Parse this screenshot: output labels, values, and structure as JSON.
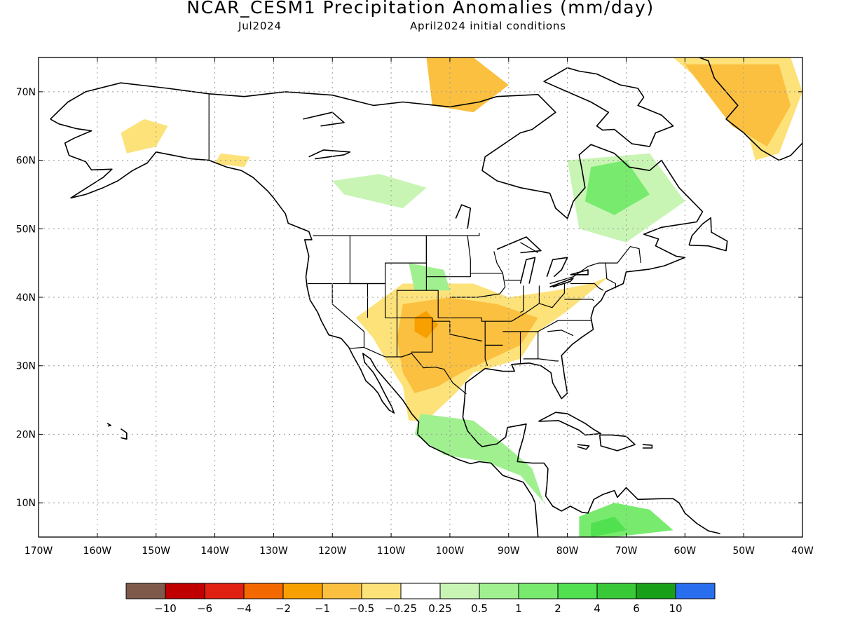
{
  "title": "NCAR_CESM1 Precipitation Anomalies (mm/day)",
  "subtitle_left": "Jul2024",
  "subtitle_right": "April2024 initial conditions",
  "map": {
    "lon_range": [
      -170,
      -40
    ],
    "lat_range": [
      5,
      75
    ],
    "lon_ticks": [
      {
        "value": -170,
        "label": "170W"
      },
      {
        "value": -160,
        "label": "160W"
      },
      {
        "value": -150,
        "label": "150W"
      },
      {
        "value": -140,
        "label": "140W"
      },
      {
        "value": -130,
        "label": "130W"
      },
      {
        "value": -120,
        "label": "120W"
      },
      {
        "value": -110,
        "label": "110W"
      },
      {
        "value": -100,
        "label": "100W"
      },
      {
        "value": -90,
        "label": "90W"
      },
      {
        "value": -80,
        "label": "80W"
      },
      {
        "value": -70,
        "label": "70W"
      },
      {
        "value": -60,
        "label": "60W"
      },
      {
        "value": -50,
        "label": "50W"
      },
      {
        "value": -40,
        "label": "40W"
      }
    ],
    "lat_ticks": [
      {
        "value": 10,
        "label": "10N"
      },
      {
        "value": 20,
        "label": "20N"
      },
      {
        "value": 30,
        "label": "30N"
      },
      {
        "value": 40,
        "label": "40N"
      },
      {
        "value": 50,
        "label": "50N"
      },
      {
        "value": 60,
        "label": "60N"
      },
      {
        "value": 70,
        "label": "70N"
      }
    ],
    "grid": "dotted"
  },
  "colorbar": {
    "colors": [
      "#7f5a4a",
      "#c00000",
      "#e02010",
      "#f46800",
      "#f8a000",
      "#fbc040",
      "#fde27a",
      "#ffffff",
      "#c8f5b4",
      "#a0f090",
      "#78eb6e",
      "#50e050",
      "#38c838",
      "#18a018",
      "#2a6ef0"
    ],
    "labels": [
      "−10",
      "−6",
      "−4",
      "−2",
      "−1",
      "−0.5",
      "−0.25",
      "0.25",
      "0.5",
      "1",
      "2",
      "4",
      "6",
      "10"
    ]
  },
  "anomaly_regions": [
    {
      "level": "-0.25",
      "color": "#fde27a",
      "points": [
        [
          -156,
          64
        ],
        [
          -152,
          66
        ],
        [
          -148,
          65
        ],
        [
          -150,
          62
        ],
        [
          -155,
          61
        ]
      ]
    },
    {
      "level": "-0.25",
      "color": "#fde27a",
      "points": [
        [
          -139,
          61
        ],
        [
          -134,
          60.5
        ],
        [
          -135,
          59
        ],
        [
          -140,
          59.5
        ]
      ]
    },
    {
      "level": "-1",
      "color": "#fbc040",
      "points": [
        [
          -104,
          75
        ],
        [
          -96,
          75
        ],
        [
          -90,
          71
        ],
        [
          -96,
          67
        ],
        [
          -103,
          68
        ]
      ]
    },
    {
      "level": "-0.25",
      "color": "#fde27a",
      "points": [
        [
          -62,
          75
        ],
        [
          -42,
          75
        ],
        [
          -40,
          70
        ],
        [
          -44,
          61
        ],
        [
          -48,
          60
        ],
        [
          -50,
          66
        ]
      ]
    },
    {
      "level": "-1",
      "color": "#fbc040",
      "points": [
        [
          -60,
          74
        ],
        [
          -44,
          74
        ],
        [
          -42,
          68
        ],
        [
          -46,
          62
        ],
        [
          -52,
          65
        ]
      ]
    },
    {
      "level": "-0.25",
      "color": "#fde27a",
      "points": [
        [
          -116,
          37
        ],
        [
          -108,
          42
        ],
        [
          -96,
          42
        ],
        [
          -90,
          40
        ],
        [
          -82,
          41
        ],
        [
          -76,
          42
        ],
        [
          -73,
          43
        ],
        [
          -80,
          38
        ],
        [
          -85,
          35
        ],
        [
          -88,
          31
        ],
        [
          -92,
          30
        ],
        [
          -96,
          29
        ],
        [
          -99,
          26
        ],
        [
          -104,
          22
        ],
        [
          -107,
          22
        ],
        [
          -108,
          27
        ],
        [
          -111,
          31
        ],
        [
          -113,
          34
        ]
      ]
    },
    {
      "level": "-0.5",
      "color": "#fbc040",
      "points": [
        [
          -108,
          39
        ],
        [
          -100,
          40
        ],
        [
          -92,
          39
        ],
        [
          -85,
          37
        ],
        [
          -88,
          33
        ],
        [
          -93,
          31
        ],
        [
          -98,
          29
        ],
        [
          -102,
          27
        ],
        [
          -106,
          26
        ],
        [
          -108,
          29
        ],
        [
          -109,
          34
        ]
      ]
    },
    {
      "level": "-1",
      "color": "#f8a000",
      "points": [
        [
          -106,
          37
        ],
        [
          -104,
          38
        ],
        [
          -102,
          36
        ],
        [
          -104,
          34
        ],
        [
          -106,
          35
        ]
      ]
    },
    {
      "level": "0.25",
      "color": "#c8f5b4",
      "points": [
        [
          -118,
          55
        ],
        [
          -108,
          53
        ],
        [
          -104,
          56
        ],
        [
          -112,
          58
        ],
        [
          -120,
          57
        ]
      ]
    },
    {
      "level": "0.5",
      "color": "#a0f090",
      "points": [
        [
          -107,
          45
        ],
        [
          -101,
          44
        ],
        [
          -100,
          41
        ],
        [
          -106,
          41
        ]
      ]
    },
    {
      "level": "0.25",
      "color": "#c8f5b4",
      "points": [
        [
          -80,
          60
        ],
        [
          -66,
          61
        ],
        [
          -60,
          54
        ],
        [
          -70,
          48
        ],
        [
          -78,
          50
        ]
      ]
    },
    {
      "level": "1",
      "color": "#78eb6e",
      "points": [
        [
          -76,
          59
        ],
        [
          -70,
          60
        ],
        [
          -66,
          55
        ],
        [
          -72,
          52
        ],
        [
          -77,
          54
        ]
      ]
    },
    {
      "level": "0.5",
      "color": "#a0f090",
      "points": [
        [
          -105,
          23
        ],
        [
          -96,
          22
        ],
        [
          -90,
          18
        ],
        [
          -86,
          15
        ],
        [
          -84,
          10
        ],
        [
          -88,
          14
        ],
        [
          -94,
          16
        ],
        [
          -101,
          17
        ],
        [
          -106,
          20
        ]
      ]
    },
    {
      "level": "1",
      "color": "#78eb6e",
      "points": [
        [
          -78,
          8
        ],
        [
          -72,
          10
        ],
        [
          -66,
          9
        ],
        [
          -62,
          6
        ],
        [
          -72,
          5
        ],
        [
          -78,
          5
        ]
      ]
    },
    {
      "level": "2",
      "color": "#50e050",
      "points": [
        [
          -76,
          7
        ],
        [
          -72,
          8
        ],
        [
          -70,
          6
        ],
        [
          -76,
          5
        ]
      ]
    }
  ]
}
